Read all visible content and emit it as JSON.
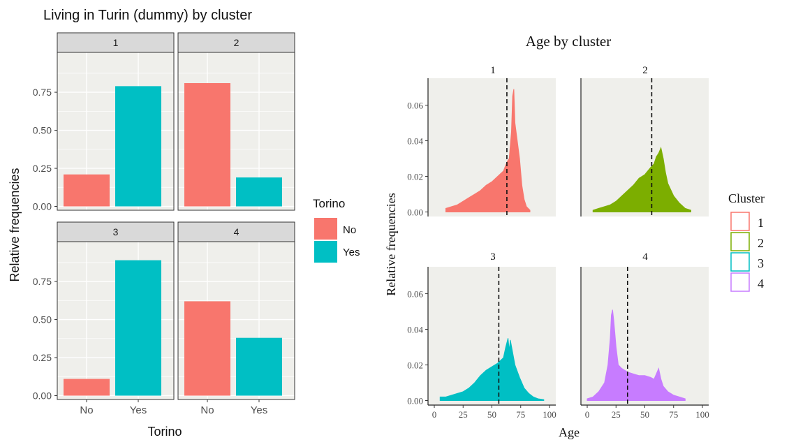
{
  "colors": {
    "panel_bg": "#EFEFEB",
    "strip_bg": "#D9D9D9",
    "grid": "#FFFFFF",
    "cluster_1": "#F8766D",
    "cluster_2": "#7CAE00",
    "cluster_3": "#00BFC4",
    "cluster_4": "#C77CFF",
    "bar_no": "#F8766D",
    "bar_yes": "#00BFC4"
  },
  "chart_data": [
    {
      "type": "bar",
      "title": "Living in Turin (dummy) by cluster",
      "xlabel": "Torino",
      "ylabel": "Relative frequencies",
      "categories": [
        "No",
        "Yes"
      ],
      "ylim": [
        0,
        0.95
      ],
      "yticks": [
        "0.00",
        "0.25",
        "0.50",
        "0.75"
      ],
      "facets": [
        {
          "label": "1",
          "values": [
            0.21,
            0.79
          ]
        },
        {
          "label": "2",
          "values": [
            0.81,
            0.19
          ]
        },
        {
          "label": "3",
          "values": [
            0.11,
            0.89
          ]
        },
        {
          "label": "4",
          "values": [
            0.62,
            0.38
          ]
        }
      ],
      "legend": {
        "title": "Torino",
        "items": [
          "No",
          "Yes"
        ],
        "position": "right"
      }
    },
    {
      "type": "area",
      "title": "Age by cluster",
      "xlabel": "Age",
      "ylabel": "Relative frequencies",
      "xlim": [
        0,
        100
      ],
      "ylim": [
        0,
        0.072
      ],
      "xticks": [
        "0",
        "25",
        "50",
        "75",
        "100"
      ],
      "yticks": [
        "0.00",
        "0.02",
        "0.04",
        "0.06"
      ],
      "facets": [
        {
          "label": "1",
          "mean_line": 63,
          "points": [
            [
              10,
              0.002
            ],
            [
              15,
              0.003
            ],
            [
              20,
              0.004
            ],
            [
              25,
              0.006
            ],
            [
              30,
              0.008
            ],
            [
              35,
              0.01
            ],
            [
              40,
              0.012
            ],
            [
              45,
              0.015
            ],
            [
              50,
              0.017
            ],
            [
              55,
              0.02
            ],
            [
              60,
              0.023
            ],
            [
              63,
              0.028
            ],
            [
              65,
              0.03
            ],
            [
              67,
              0.045
            ],
            [
              68,
              0.065
            ],
            [
              69,
              0.069
            ],
            [
              70,
              0.05
            ],
            [
              72,
              0.04
            ],
            [
              74,
              0.03
            ],
            [
              76,
              0.015
            ],
            [
              78,
              0.007
            ],
            [
              80,
              0.003
            ],
            [
              83,
              0.001
            ]
          ]
        },
        {
          "label": "2",
          "mean_line": 56,
          "points": [
            [
              5,
              0.001
            ],
            [
              10,
              0.002
            ],
            [
              15,
              0.003
            ],
            [
              20,
              0.004
            ],
            [
              25,
              0.006
            ],
            [
              30,
              0.009
            ],
            [
              35,
              0.012
            ],
            [
              40,
              0.015
            ],
            [
              45,
              0.019
            ],
            [
              50,
              0.021
            ],
            [
              55,
              0.025
            ],
            [
              58,
              0.027
            ],
            [
              60,
              0.031
            ],
            [
              62,
              0.033
            ],
            [
              64,
              0.036
            ],
            [
              66,
              0.03
            ],
            [
              68,
              0.022
            ],
            [
              70,
              0.016
            ],
            [
              75,
              0.009
            ],
            [
              80,
              0.005
            ],
            [
              85,
              0.002
            ],
            [
              90,
              0.001
            ]
          ]
        },
        {
          "label": "3",
          "mean_line": 56,
          "points": [
            [
              5,
              0.002
            ],
            [
              10,
              0.002
            ],
            [
              15,
              0.003
            ],
            [
              20,
              0.004
            ],
            [
              25,
              0.005
            ],
            [
              30,
              0.007
            ],
            [
              35,
              0.01
            ],
            [
              40,
              0.014
            ],
            [
              45,
              0.017
            ],
            [
              50,
              0.019
            ],
            [
              55,
              0.021
            ],
            [
              60,
              0.024
            ],
            [
              62,
              0.03
            ],
            [
              64,
              0.035
            ],
            [
              65,
              0.028
            ],
            [
              66,
              0.034
            ],
            [
              68,
              0.027
            ],
            [
              70,
              0.02
            ],
            [
              74,
              0.013
            ],
            [
              78,
              0.007
            ],
            [
              82,
              0.004
            ],
            [
              86,
              0.002
            ],
            [
              90,
              0.001
            ],
            [
              95,
              0.0005
            ]
          ]
        },
        {
          "label": "4",
          "mean_line": 35,
          "points": [
            [
              0,
              0.001
            ],
            [
              5,
              0.002
            ],
            [
              10,
              0.005
            ],
            [
              15,
              0.01
            ],
            [
              18,
              0.02
            ],
            [
              20,
              0.035
            ],
            [
              21,
              0.048
            ],
            [
              22,
              0.051
            ],
            [
              23,
              0.045
            ],
            [
              24,
              0.038
            ],
            [
              25,
              0.03
            ],
            [
              27,
              0.02
            ],
            [
              30,
              0.018
            ],
            [
              35,
              0.016
            ],
            [
              40,
              0.015
            ],
            [
              45,
              0.014
            ],
            [
              50,
              0.014
            ],
            [
              55,
              0.013
            ],
            [
              58,
              0.012
            ],
            [
              60,
              0.015
            ],
            [
              62,
              0.018
            ],
            [
              64,
              0.012
            ],
            [
              66,
              0.008
            ],
            [
              70,
              0.005
            ],
            [
              75,
              0.003
            ],
            [
              80,
              0.002
            ],
            [
              85,
              0.001
            ]
          ]
        }
      ],
      "legend": {
        "title": "Cluster",
        "items": [
          "1",
          "2",
          "3",
          "4"
        ],
        "position": "right"
      }
    }
  ]
}
